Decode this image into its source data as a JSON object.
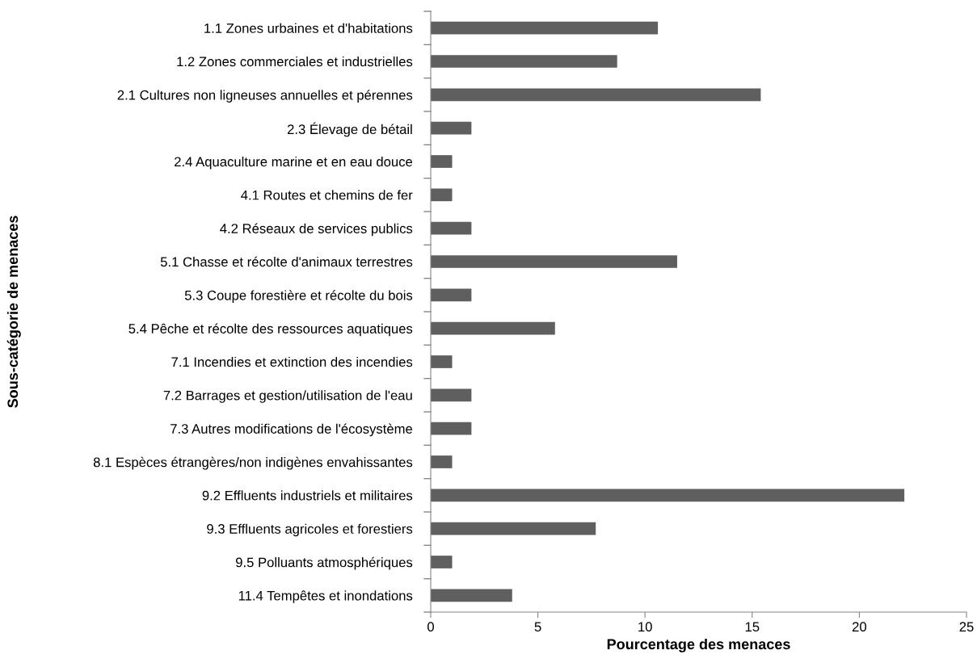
{
  "chart_data": {
    "type": "bar",
    "orientation": "horizontal",
    "xlabel": "Pourcentage des menaces",
    "ylabel": "Sous-catégorie de menaces",
    "categories": [
      "1.1 Zones urbaines et d'habitations",
      "1.2 Zones commerciales et industrielles",
      "2.1 Cultures non ligneuses annuelles et pérennes",
      "2.3 Élevage de bétail",
      "2.4 Aquaculture marine et en eau douce",
      "4.1 Routes et chemins de fer",
      "4.2 Réseaux de services publics",
      "5.1 Chasse et récolte d'animaux terrestres",
      "5.3 Coupe forestière et récolte du bois",
      "5.4 Pêche et récolte des ressources aquatiques",
      "7.1 Incendies et extinction des incendies",
      "7.2 Barrages et gestion/utilisation de l'eau",
      "7.3 Autres modifications de l'écosystème",
      "8.1 Espèces étrangères/non indigènes envahissantes",
      "9.2 Effluents industriels et militaires",
      "9.3 Effluents agricoles et forestiers",
      "9.5 Polluants atmosphériques",
      "11.4 Tempêtes et inondations"
    ],
    "values": [
      10.6,
      8.7,
      15.4,
      1.9,
      1.0,
      1.0,
      1.9,
      11.5,
      1.9,
      5.8,
      1.0,
      1.9,
      1.9,
      1.0,
      22.1,
      7.7,
      1.0,
      3.8
    ],
    "color": "#5f5f5f",
    "xlim": [
      0,
      25
    ],
    "xticks": [
      0,
      5,
      10,
      15,
      20,
      25
    ],
    "grid": false,
    "legend": false
  }
}
